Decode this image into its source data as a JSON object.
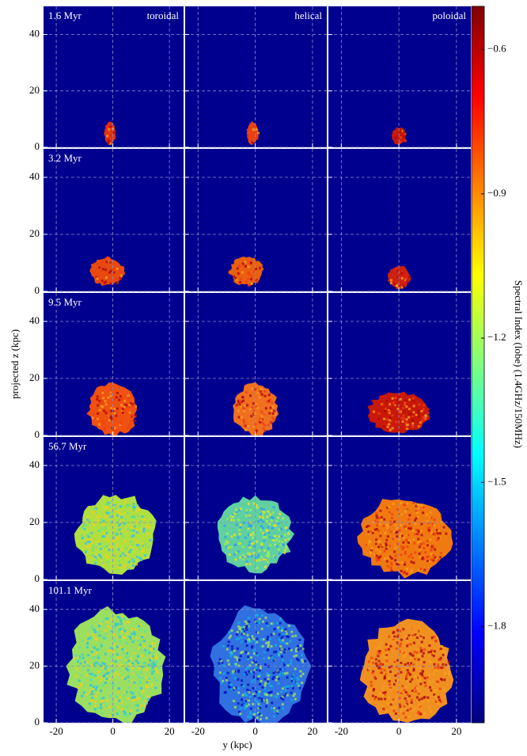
{
  "chart_data": {
    "type": "image-grid",
    "columns": [
      "toroidal",
      "helical",
      "poloidal"
    ],
    "rows": [
      "1.6 Myr",
      "3.2 Myr",
      "9.5 Myr",
      "56.7 Myr",
      "101.1 Myr"
    ],
    "xlabel": "y (kpc)",
    "ylabel": "projected z (kpc)",
    "xlim": [
      -24.5,
      25
    ],
    "ylim": [
      0,
      50
    ],
    "xticks": [
      -20,
      0,
      20
    ],
    "yticks": [
      0,
      20,
      40
    ],
    "grid": true,
    "colorbar": {
      "label": "Spectral Index (lobe) (1.4GHz/150MHz)",
      "lim": [
        -2.0,
        -0.51
      ],
      "colormap": "jet",
      "ticks": [
        {
          "value": -0.6,
          "label": "−0.6"
        },
        {
          "value": -0.9,
          "label": "−0.9"
        },
        {
          "value": -1.2,
          "label": "−1.2"
        },
        {
          "value": -1.5,
          "label": "−1.5"
        },
        {
          "value": -1.8,
          "label": "−1.8"
        }
      ]
    }
  }
}
